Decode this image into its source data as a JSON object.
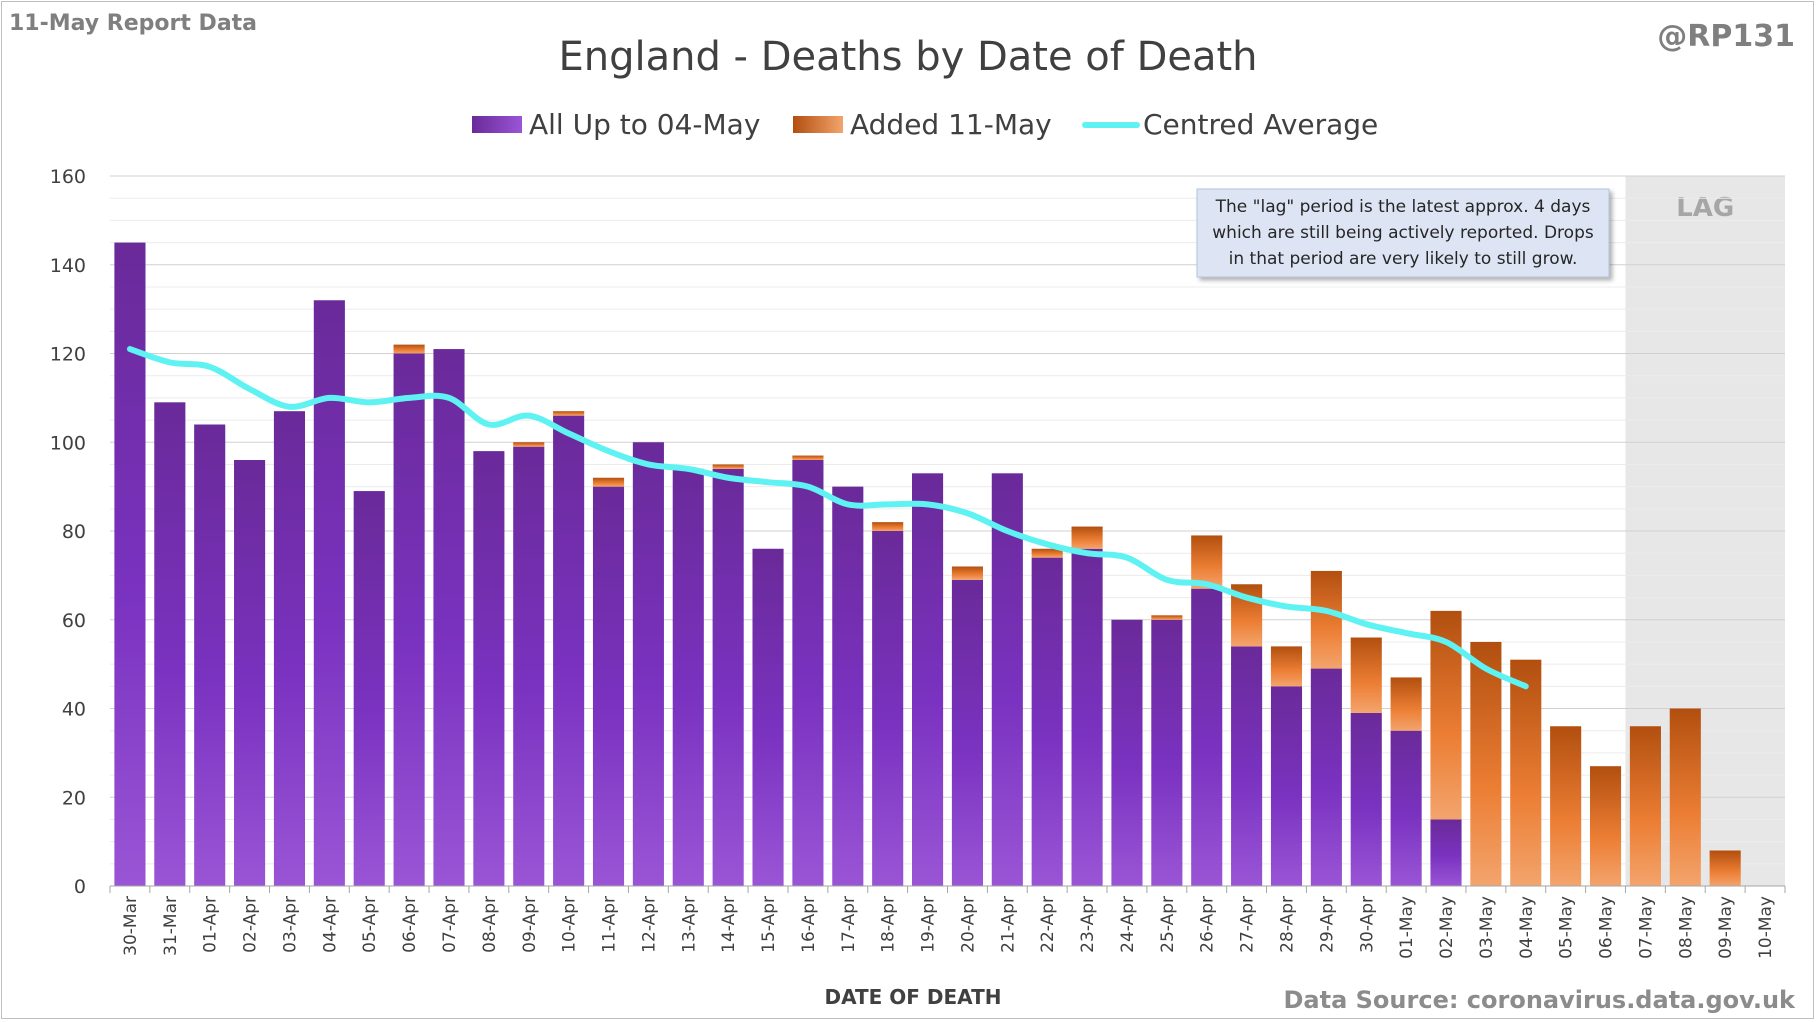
{
  "report_label": "11-May Report Data",
  "handle": "@RP131",
  "source": "Data Source: coronavirus.data.gov.uk",
  "lag_label": "LAG",
  "annotation": [
    "The \"lag\" period is the latest approx. 4 days",
    "which are still being actively reported.  Drops",
    "in that period are very likely to still grow."
  ],
  "colors": {
    "base": "#7030a0",
    "added": "#ed7d31",
    "average": "#5ff2f2",
    "lag_shade": "#e7e7e7"
  },
  "chart_data": {
    "type": "bar",
    "stacked": true,
    "title": "England - Deaths by Date of Death",
    "xlabel": "DATE OF DEATH",
    "ylabel": "",
    "ylim": [
      0,
      160
    ],
    "yticks": [
      0,
      20,
      40,
      60,
      80,
      100,
      120,
      140,
      160
    ],
    "grid": true,
    "legend_position": "top",
    "categories": [
      "30-Mar",
      "31-Mar",
      "01-Apr",
      "02-Apr",
      "03-Apr",
      "04-Apr",
      "05-Apr",
      "06-Apr",
      "07-Apr",
      "08-Apr",
      "09-Apr",
      "10-Apr",
      "11-Apr",
      "12-Apr",
      "13-Apr",
      "14-Apr",
      "15-Apr",
      "16-Apr",
      "17-Apr",
      "18-Apr",
      "19-Apr",
      "20-Apr",
      "21-Apr",
      "22-Apr",
      "23-Apr",
      "24-Apr",
      "25-Apr",
      "26-Apr",
      "27-Apr",
      "28-Apr",
      "29-Apr",
      "30-Apr",
      "01-May",
      "02-May",
      "03-May",
      "04-May",
      "05-May",
      "06-May",
      "07-May",
      "08-May",
      "09-May",
      "10-May"
    ],
    "lag_region": [
      "07-May",
      "10-May"
    ],
    "series": [
      {
        "name": "All Up to 04-May",
        "type": "bar",
        "values": [
          145,
          109,
          104,
          96,
          107,
          132,
          89,
          120,
          121,
          98,
          99,
          106,
          90,
          100,
          94,
          94,
          76,
          96,
          90,
          80,
          93,
          69,
          93,
          74,
          76,
          60,
          60,
          67,
          54,
          45,
          49,
          39,
          35,
          15,
          0,
          0,
          0,
          0,
          0,
          0,
          0,
          0
        ]
      },
      {
        "name": "Added 11-May",
        "type": "bar",
        "values": [
          0,
          0,
          0,
          0,
          0,
          0,
          0,
          2,
          0,
          0,
          1,
          1,
          2,
          0,
          0,
          1,
          0,
          1,
          0,
          2,
          0,
          3,
          0,
          2,
          5,
          0,
          1,
          12,
          14,
          9,
          22,
          17,
          12,
          47,
          55,
          51,
          36,
          27,
          36,
          40,
          8,
          0
        ]
      },
      {
        "name": "Centred Average",
        "type": "line",
        "values": [
          121,
          118,
          117,
          112,
          108,
          110,
          109,
          110,
          110,
          104,
          106,
          102,
          98,
          95,
          94,
          92,
          91,
          90,
          86,
          86,
          86,
          84,
          80,
          77,
          75,
          74,
          69,
          68,
          65,
          63,
          62,
          59,
          57,
          55,
          49,
          45,
          null,
          null,
          null,
          null,
          null,
          null
        ]
      }
    ]
  }
}
